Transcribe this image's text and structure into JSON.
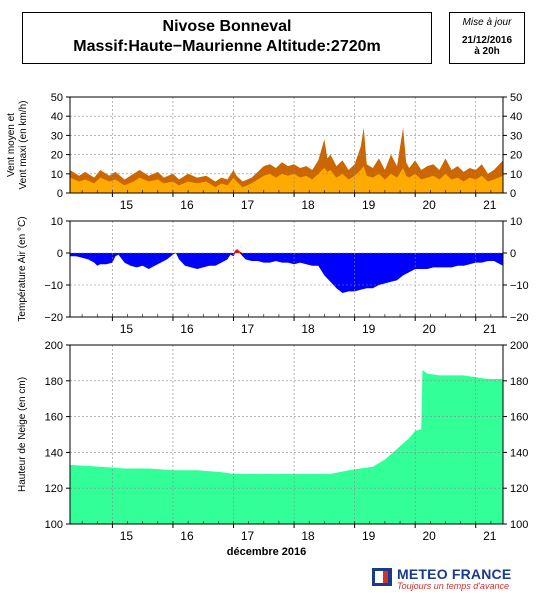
{
  "header": {
    "title_line1": "Nivose Bonneval",
    "title_line2": "Massif:Haute−Maurienne Altitude:2720m",
    "update_label": "Mise à jour",
    "update_date": "21/12/2016",
    "update_time": "à 20h"
  },
  "brand": {
    "name": "METEO FRANCE",
    "slogan": "Toujours un temps d'avance"
  },
  "chart_data": [
    {
      "type": "area",
      "ylabel": [
        "Vent moyen et",
        "Vent maxi (en km/h)"
      ],
      "ylim": [
        0,
        50
      ],
      "yticks": [
        0,
        10,
        20,
        30,
        40,
        50
      ],
      "x_range": [
        14.3,
        21.45
      ],
      "xticks": [
        15,
        16,
        17,
        18,
        19,
        20,
        21
      ],
      "colors": {
        "max": "#cc6600",
        "mean": "#ffaa00"
      },
      "series": [
        {
          "key": "max",
          "x": [
            14.3,
            14.45,
            14.55,
            14.7,
            14.8,
            14.95,
            15.05,
            15.2,
            15.35,
            15.45,
            15.6,
            15.75,
            15.85,
            16.0,
            16.1,
            16.25,
            16.4,
            16.55,
            16.7,
            16.8,
            16.9,
            17.0,
            17.05,
            17.15,
            17.3,
            17.4,
            17.5,
            17.6,
            17.7,
            17.8,
            17.9,
            18.0,
            18.1,
            18.2,
            18.3,
            18.4,
            18.5,
            18.55,
            18.6,
            18.7,
            18.8,
            18.9,
            19.0,
            19.1,
            19.15,
            19.2,
            19.3,
            19.4,
            19.5,
            19.6,
            19.7,
            19.8,
            19.85,
            19.9,
            20.0,
            20.1,
            20.2,
            20.3,
            20.4,
            20.5,
            20.6,
            20.7,
            20.8,
            20.9,
            21.0,
            21.1,
            21.2,
            21.3,
            21.45
          ],
          "values": [
            12,
            9,
            11,
            8,
            12,
            9,
            11,
            7,
            10,
            12,
            9,
            11,
            8,
            10,
            7,
            10,
            8,
            9,
            6,
            8,
            7,
            12,
            9,
            6,
            8,
            11,
            14,
            15,
            13,
            16,
            14,
            15,
            13,
            14,
            12,
            17,
            28,
            18,
            20,
            14,
            17,
            12,
            15,
            24,
            34,
            15,
            13,
            18,
            12,
            20,
            14,
            34,
            16,
            13,
            17,
            12,
            14,
            15,
            12,
            18,
            12,
            14,
            11,
            13,
            12,
            15,
            10,
            12,
            17
          ]
        },
        {
          "key": "mean",
          "x": [
            14.3,
            14.45,
            14.55,
            14.7,
            14.8,
            14.95,
            15.05,
            15.2,
            15.35,
            15.45,
            15.6,
            15.75,
            15.85,
            16.0,
            16.1,
            16.25,
            16.4,
            16.55,
            16.7,
            16.8,
            16.9,
            17.0,
            17.05,
            17.15,
            17.3,
            17.4,
            17.5,
            17.6,
            17.7,
            17.8,
            17.9,
            18.0,
            18.1,
            18.2,
            18.3,
            18.4,
            18.5,
            18.55,
            18.6,
            18.7,
            18.8,
            18.9,
            19.0,
            19.1,
            19.15,
            19.2,
            19.3,
            19.4,
            19.5,
            19.6,
            19.7,
            19.8,
            19.85,
            19.9,
            20.0,
            20.1,
            20.2,
            20.3,
            20.4,
            20.5,
            20.6,
            20.7,
            20.8,
            20.9,
            21.0,
            21.1,
            21.2,
            21.3,
            21.45
          ],
          "values": [
            8,
            6,
            7,
            5,
            8,
            6,
            7,
            4,
            6,
            8,
            6,
            7,
            5,
            6,
            4,
            6,
            5,
            6,
            3,
            5,
            4,
            8,
            6,
            3,
            5,
            7,
            9,
            10,
            8,
            10,
            9,
            10,
            8,
            9,
            7,
            10,
            13,
            11,
            12,
            8,
            10,
            7,
            9,
            12,
            14,
            9,
            8,
            10,
            7,
            10,
            8,
            13,
            9,
            8,
            10,
            7,
            8,
            9,
            7,
            10,
            7,
            8,
            6,
            8,
            7,
            9,
            6,
            7,
            9
          ]
        }
      ]
    },
    {
      "type": "area",
      "ylabel": [
        "Température Air (en °C)"
      ],
      "ylim": [
        -20,
        10
      ],
      "yticks": [
        -20,
        -10,
        0,
        10
      ],
      "x_range": [
        14.3,
        21.45
      ],
      "xticks": [
        15,
        16,
        17,
        18,
        19,
        20,
        21
      ],
      "colors": {
        "negative": "#0000ff",
        "positive": "#ff0000"
      },
      "series": [
        {
          "key": "temperature",
          "x": [
            14.3,
            14.4,
            14.5,
            14.6,
            14.7,
            14.75,
            14.8,
            14.9,
            15.0,
            15.05,
            15.1,
            15.2,
            15.3,
            15.4,
            15.5,
            15.6,
            15.7,
            15.8,
            15.9,
            16.0,
            16.05,
            16.1,
            16.2,
            16.3,
            16.4,
            16.5,
            16.6,
            16.7,
            16.8,
            16.9,
            16.95,
            17.0,
            17.03,
            17.06,
            17.1,
            17.15,
            17.2,
            17.3,
            17.4,
            17.5,
            17.6,
            17.7,
            17.8,
            17.9,
            18.0,
            18.1,
            18.2,
            18.3,
            18.4,
            18.5,
            18.6,
            18.7,
            18.8,
            18.9,
            19.0,
            19.1,
            19.2,
            19.3,
            19.4,
            19.5,
            19.6,
            19.7,
            19.8,
            19.9,
            20.0,
            20.1,
            20.2,
            20.3,
            20.4,
            20.5,
            20.6,
            20.7,
            20.8,
            20.9,
            21.0,
            21.1,
            21.2,
            21.3,
            21.45
          ],
          "values": [
            -1,
            -1,
            -1.5,
            -2,
            -3,
            -4,
            -3.5,
            -3.5,
            -3,
            -1,
            -0.5,
            -3,
            -4,
            -4.5,
            -4,
            -5,
            -4,
            -3,
            -2,
            -0.5,
            0,
            -2,
            -4,
            -4.5,
            -5,
            -4.5,
            -4,
            -4,
            -3,
            -2,
            -0.5,
            -1,
            0.8,
            1.2,
            0.5,
            -1,
            -2,
            -2.5,
            -2.5,
            -3,
            -3,
            -2.5,
            -3,
            -3,
            -3.5,
            -3,
            -3.5,
            -4,
            -4,
            -7,
            -9,
            -11,
            -12.5,
            -12,
            -12,
            -11.5,
            -11,
            -11,
            -10,
            -9.5,
            -9,
            -8.5,
            -7,
            -6,
            -5,
            -5,
            -5,
            -4.5,
            -4.5,
            -4.5,
            -4.5,
            -4,
            -4,
            -3.5,
            -3,
            -3,
            -2.5,
            -2.5,
            -4
          ]
        }
      ]
    },
    {
      "type": "area",
      "xlabel": "décembre 2016",
      "ylabel": [
        "Hauteur de Neige (en cm)"
      ],
      "ylim": [
        100,
        200
      ],
      "yticks": [
        100,
        120,
        140,
        160,
        180,
        200
      ],
      "x_range": [
        14.3,
        21.45
      ],
      "xticks": [
        15,
        16,
        17,
        18,
        19,
        20,
        21
      ],
      "colors": {
        "fill": "#33ff99"
      },
      "series": [
        {
          "key": "snow_depth",
          "x": [
            14.3,
            14.8,
            15.2,
            15.6,
            16.0,
            16.4,
            16.8,
            17.0,
            17.4,
            17.8,
            18.2,
            18.6,
            18.9,
            19.1,
            19.3,
            19.5,
            19.7,
            19.9,
            20.0,
            20.1,
            20.12,
            20.2,
            20.4,
            20.6,
            20.8,
            21.0,
            21.2,
            21.45
          ],
          "values": [
            133,
            132,
            131,
            131,
            130,
            130,
            129,
            128,
            128,
            128,
            128,
            128,
            130,
            131,
            132,
            136,
            142,
            148,
            152,
            153,
            186,
            184,
            183,
            183,
            183,
            182,
            181,
            181
          ]
        }
      ]
    }
  ]
}
